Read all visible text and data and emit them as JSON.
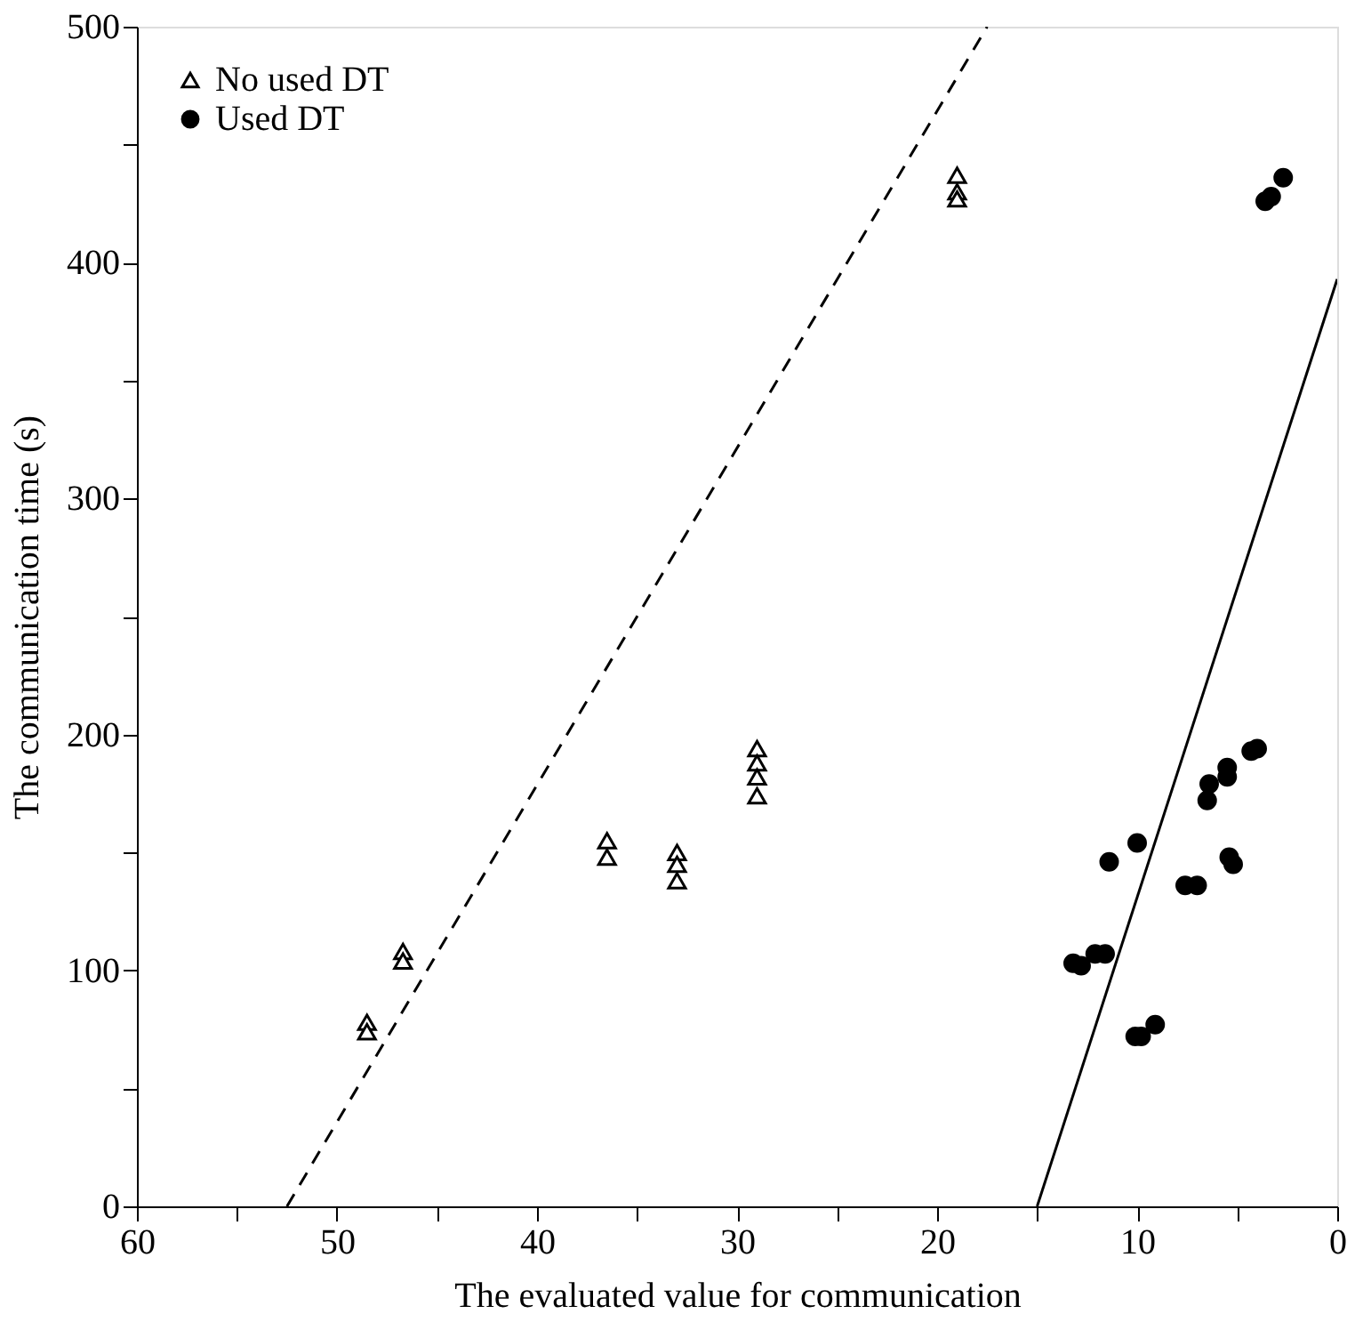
{
  "chart_data": {
    "type": "scatter",
    "xlabel": "The evaluated value for communication",
    "ylabel": "The communication time (s)",
    "xlim": [
      60,
      0
    ],
    "ylim": [
      0,
      500
    ],
    "xticks": [
      60,
      {
        "value": 55,
        "label": null
      },
      50,
      {
        "value": 45,
        "label": null
      },
      40,
      {
        "value": 35,
        "label": null
      },
      30,
      {
        "value": 25,
        "label": null
      },
      20,
      {
        "value": 15,
        "label": null
      },
      10,
      {
        "value": 5,
        "label": null
      },
      0
    ],
    "yticks": [
      0,
      {
        "value": 50,
        "label": null
      },
      100,
      {
        "value": 150,
        "label": null
      },
      200,
      {
        "value": 250,
        "label": null
      },
      300,
      {
        "value": 350,
        "label": null
      },
      400,
      {
        "value": 450,
        "label": null
      },
      500
    ],
    "grid": false,
    "legend": "top left",
    "series": [
      {
        "name": "No used DT",
        "marker": "triangle",
        "color": "#000000",
        "x": [
          48.5,
          48.5,
          46.7,
          46.7,
          36.5,
          36.5,
          33,
          33,
          33,
          29,
          29,
          29,
          29,
          19,
          19,
          19
        ],
        "values": [
          78,
          74,
          108,
          104,
          155,
          148,
          150,
          145,
          138,
          194,
          188,
          182,
          174,
          437,
          430,
          427
        ]
      },
      {
        "name": "Used DT",
        "marker": "circle",
        "color": "#000000",
        "x": [
          4.3,
          4.0,
          5.5,
          5.5,
          6.4,
          6.5,
          10.0,
          11.4,
          5.4,
          5.2,
          7.6,
          7.0,
          13.2,
          12.8,
          12.1,
          11.6,
          10.1,
          9.8,
          9.1,
          2.7,
          3.3,
          3.6
        ],
        "values": [
          193,
          194,
          186,
          182,
          179,
          172,
          154,
          146,
          148,
          145,
          136,
          136,
          103,
          102,
          107,
          107,
          72,
          72,
          77,
          436,
          428,
          426
        ]
      },
      {
        "type": "line",
        "line_style": "dashed",
        "color": "#000000",
        "x": [
          52.5,
          17.5
        ],
        "values": [
          0,
          500
        ]
      },
      {
        "type": "line",
        "line_style": "solid",
        "color": "#000000",
        "x": [
          15,
          0
        ],
        "values": [
          0,
          393
        ]
      }
    ]
  }
}
